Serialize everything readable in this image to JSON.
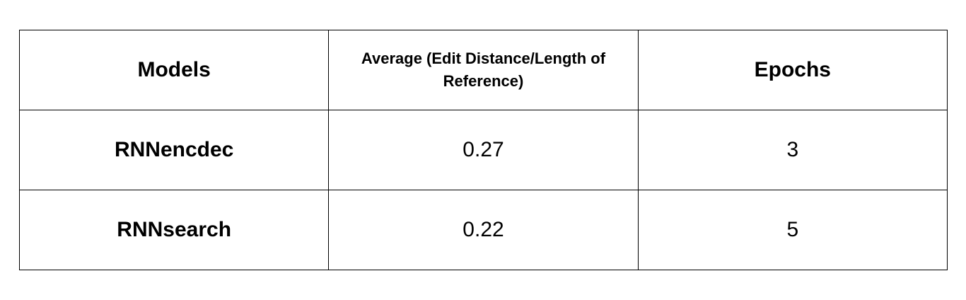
{
  "table": {
    "headers": {
      "models": "Models",
      "average": "Average (Edit Distance/Length of Reference)",
      "epochs": "Epochs"
    },
    "rows": [
      {
        "model": "RNNencdec",
        "average": "0.27",
        "epochs": "3"
      },
      {
        "model": "RNNsearch",
        "average": "0.22",
        "epochs": "5"
      }
    ]
  }
}
